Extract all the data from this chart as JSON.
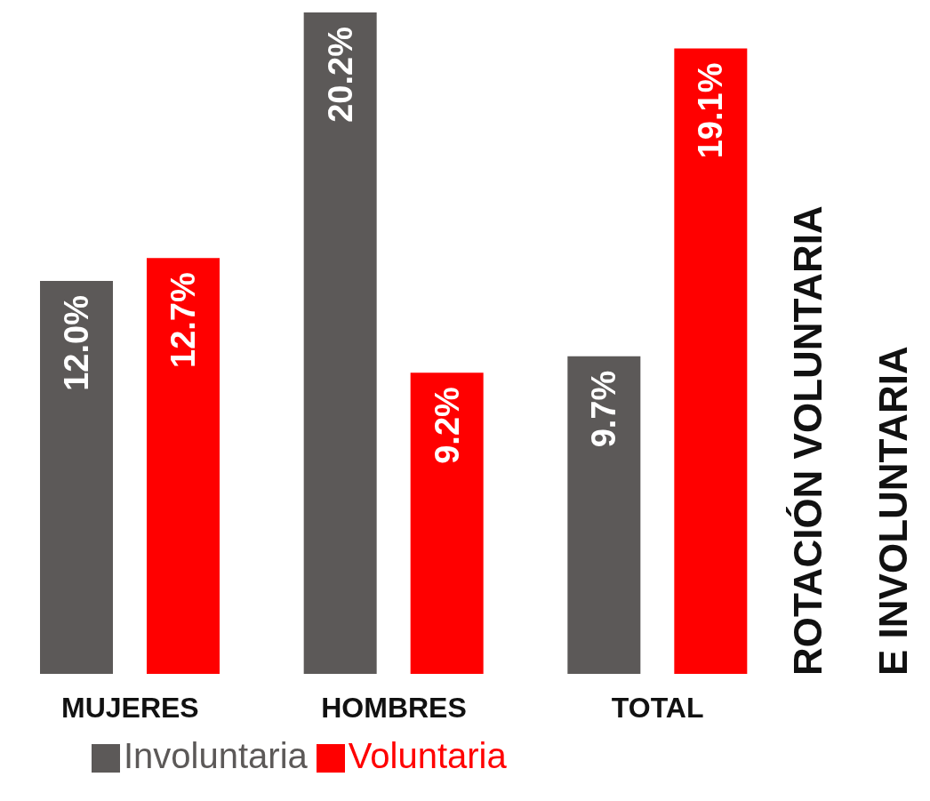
{
  "chart_data": {
    "type": "bar",
    "title": "ROTACIÓN VOLUNTARIA\nE INVOLUNTARIA",
    "categories": [
      "MUJERES",
      "HOMBRES",
      "TOTAL"
    ],
    "series": [
      {
        "name": "Involuntaria",
        "color": "#5c5958",
        "values": [
          12.0,
          20.2,
          9.7
        ],
        "value_labels": [
          "12.0%",
          "20.2%",
          "9.7%"
        ]
      },
      {
        "name": "Voluntaria",
        "color": "#ff0000",
        "values": [
          12.7,
          9.2,
          19.1
        ],
        "value_labels": [
          "12.7%",
          "9.2%",
          "19.1%"
        ]
      }
    ],
    "legend": "bottom",
    "grid": false
  }
}
